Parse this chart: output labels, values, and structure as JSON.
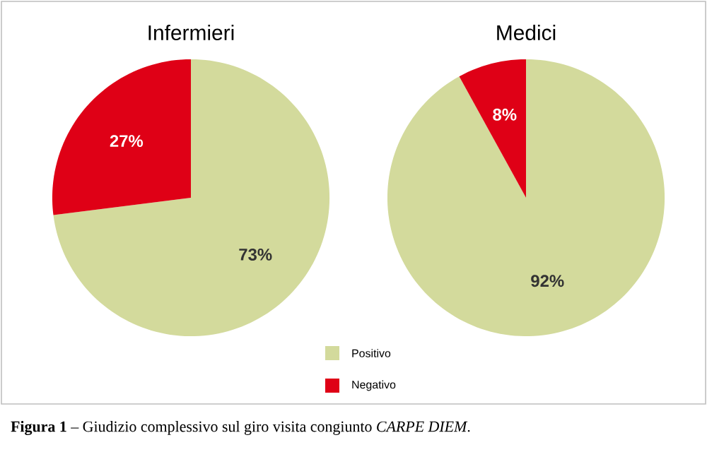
{
  "chart_data": [
    {
      "type": "pie",
      "title": "Infermieri",
      "categories": [
        "Positivo",
        "Negativo"
      ],
      "values": [
        73,
        27
      ],
      "colors": [
        "#d3da9c",
        "#df0016"
      ],
      "value_labels": [
        "73%",
        "27%"
      ],
      "legend": "bottom right",
      "annotations": [
        "**Figura 1** – Giudizio complessivo sul giro visita congiunto *CARPE DIEM*."
      ]
    },
    {
      "type": "pie",
      "title": "Medici",
      "categories": [
        null,
        null
      ],
      "values": [
        92,
        8
      ],
      "colors": [
        "#d3da9c",
        "#df0016"
      ],
      "value_labels": [
        "92%",
        "8%"
      ]
    }
  ]
}
